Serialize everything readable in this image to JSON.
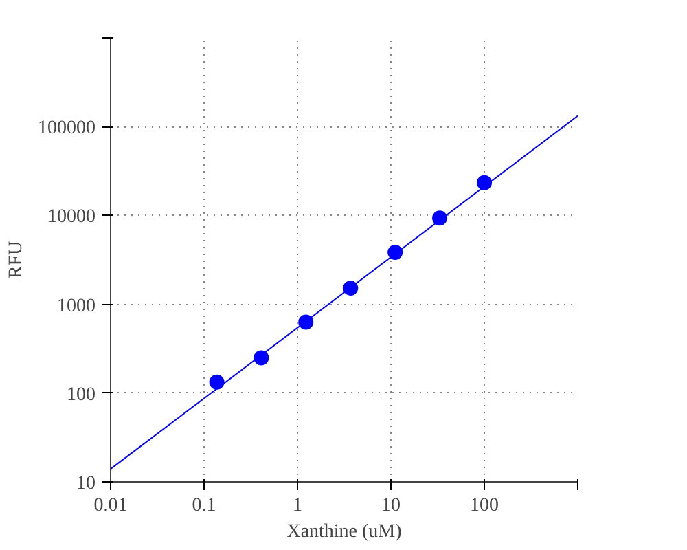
{
  "chart_data": {
    "type": "scatter",
    "xlabel": "Xanthine (uM)",
    "ylabel": "RFU",
    "log": "xy",
    "grid": true,
    "marker": "circle",
    "x": [
      0.137,
      0.41,
      1.23,
      3.7,
      11.1,
      33.3,
      100
    ],
    "series": [
      {
        "color": "#0000ff",
        "values": [
          133,
          250,
          630,
          1520,
          3850,
          9350,
          23400
        ]
      },
      {
        "type": "line",
        "color": "#0000ff",
        "marker": "none",
        "line_style": "solid",
        "x": [
          0.01,
          1000
        ],
        "values": [
          14,
          132000
        ]
      }
    ],
    "xlim": [
      0.01,
      1000
    ],
    "ylim": [
      10,
      1000000
    ],
    "xticks": [
      0.01,
      0.1,
      1,
      10,
      100,
      {
        "value": 1000,
        "label": null
      }
    ],
    "yticks": [
      10,
      100,
      1000,
      10000,
      100000,
      {
        "value": 1000000,
        "label": null
      }
    ]
  }
}
